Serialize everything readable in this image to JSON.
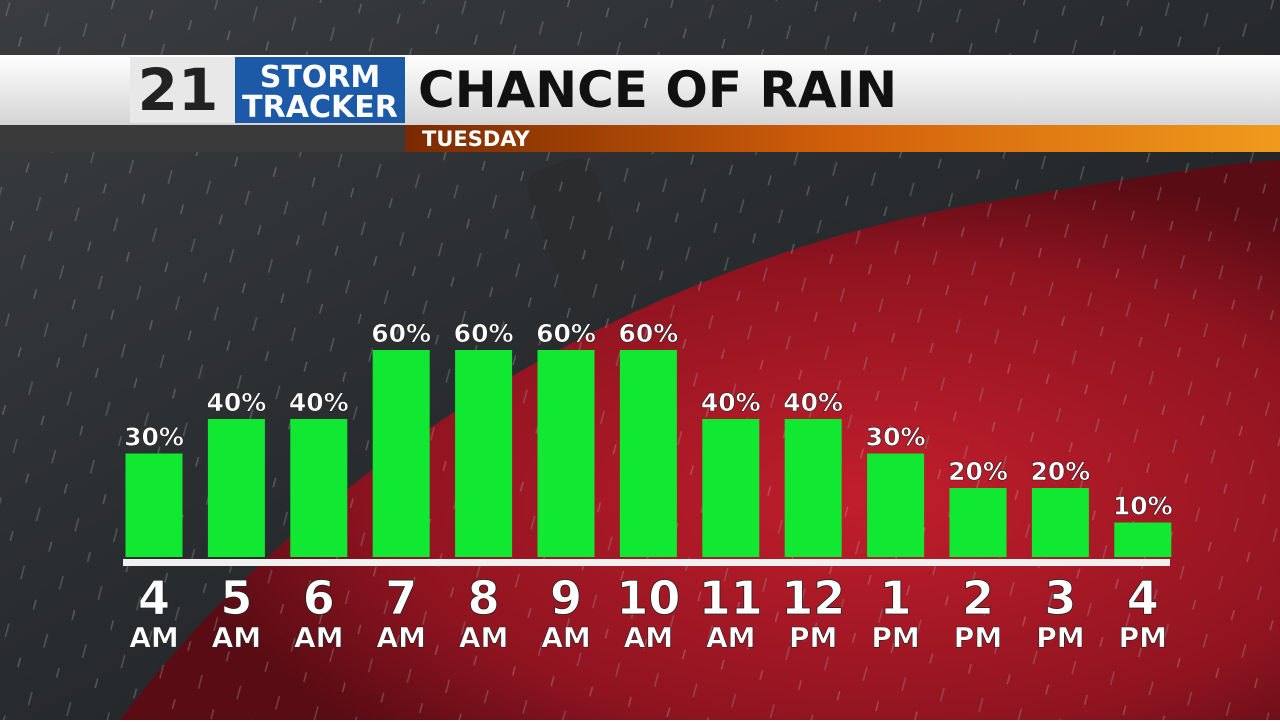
{
  "logo": {
    "number": "21",
    "line1": "STORM",
    "line2": "TRACKER"
  },
  "chart_data": {
    "type": "bar",
    "title": "CHANCE OF RAIN",
    "subtitle": "TUESDAY",
    "categories": [
      "4",
      "5",
      "6",
      "7",
      "8",
      "9",
      "10",
      "11",
      "12",
      "1",
      "2",
      "3",
      "4"
    ],
    "category_periods": [
      "AM",
      "AM",
      "AM",
      "AM",
      "AM",
      "AM",
      "AM",
      "AM",
      "PM",
      "PM",
      "PM",
      "PM",
      "PM"
    ],
    "values": [
      30,
      40,
      40,
      60,
      60,
      60,
      60,
      40,
      40,
      30,
      20,
      20,
      10
    ],
    "value_labels": [
      "30%",
      "40%",
      "40%",
      "60%",
      "60%",
      "60%",
      "60%",
      "40%",
      "40%",
      "30%",
      "20%",
      "20%",
      "10%"
    ],
    "color": "#10e832"
  }
}
